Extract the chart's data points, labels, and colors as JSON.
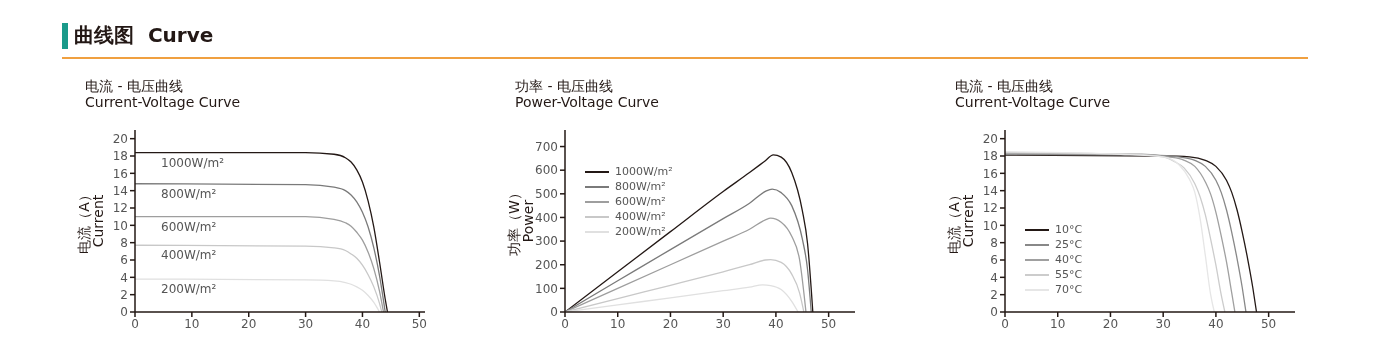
{
  "chart_data": [
    {
      "type": "line",
      "title": "电流 - 电压曲线\nCurrent-Voltage Curve",
      "annotations": [
        "曲线图  Curve"
      ],
      "ylabel": "电流（A）\nCurrent",
      "xlim": [
        0,
        51
      ],
      "ylim": [
        0,
        21
      ],
      "xticks": [
        0,
        10,
        20,
        30,
        40,
        50
      ],
      "yticks": [
        0,
        2,
        4,
        6,
        8,
        10,
        12,
        14,
        16,
        18,
        20
      ],
      "grid": false,
      "legend": false,
      "marker": "none",
      "line_style": "solid",
      "series": [
        {
          "name": "1000W/m²",
          "color": "#231815",
          "x": [
            0,
            30,
            35,
            37,
            38,
            39,
            40,
            41,
            42,
            43,
            44,
            44.4
          ],
          "values": [
            18.4,
            18.4,
            18.2,
            17.8,
            17.3,
            16.4,
            15.0,
            12.8,
            9.8,
            5.8,
            1.5,
            0
          ]
        },
        {
          "name": "800W/m²",
          "color": "#7a7a7a",
          "x": [
            0,
            30,
            35,
            37,
            38,
            39,
            40,
            41,
            42,
            43,
            44
          ],
          "values": [
            14.8,
            14.7,
            14.4,
            14.0,
            13.5,
            12.7,
            11.5,
            9.8,
            7.4,
            4.2,
            0
          ]
        },
        {
          "name": "600W/m²",
          "color": "#9e9e9e",
          "x": [
            0,
            30,
            35,
            37,
            38,
            39,
            40,
            41,
            42,
            43,
            43.7
          ],
          "values": [
            11.0,
            11.0,
            10.7,
            10.3,
            9.9,
            9.2,
            8.3,
            6.9,
            5.0,
            2.4,
            0
          ]
        },
        {
          "name": "400W/m²",
          "color": "#c8c8c8",
          "x": [
            0,
            30,
            35,
            37,
            38,
            39,
            40,
            41,
            42,
            43,
            43.4
          ],
          "values": [
            7.7,
            7.6,
            7.4,
            7.1,
            6.7,
            6.2,
            5.4,
            4.3,
            2.9,
            1.0,
            0
          ]
        },
        {
          "name": "200W/m²",
          "color": "#e0e0e0",
          "x": [
            0,
            30,
            35,
            37,
            38,
            39,
            40,
            41,
            42,
            43
          ],
          "values": [
            3.8,
            3.7,
            3.6,
            3.4,
            3.2,
            2.9,
            2.5,
            1.9,
            1.1,
            0
          ]
        }
      ]
    },
    {
      "type": "line",
      "title": "功率 - 电压曲线\nPower-Voltage Curve",
      "ylabel": "功率（W）\nPower",
      "xlim": [
        0,
        55
      ],
      "ylim": [
        0,
        770
      ],
      "xticks": [
        0,
        10,
        20,
        30,
        40,
        50
      ],
      "yticks": [
        0,
        100,
        200,
        300,
        400,
        500,
        600,
        700
      ],
      "grid": false,
      "legend": "top left",
      "marker": "none",
      "line_style": "solid",
      "series": [
        {
          "name": "1000W/m²",
          "color": "#231815",
          "x": [
            0,
            10,
            20,
            30,
            35,
            38,
            39.5,
            41,
            43,
            45,
            46,
            47
          ],
          "values": [
            0,
            170,
            340,
            510,
            590,
            640,
            665,
            655,
            590,
            430,
            290,
            0
          ]
        },
        {
          "name": "800W/m²",
          "color": "#7a7a7a",
          "x": [
            0,
            10,
            20,
            30,
            35,
            38,
            39.3,
            41,
            43,
            45,
            46,
            46.7
          ],
          "values": [
            0,
            132,
            264,
            395,
            460,
            510,
            520,
            505,
            450,
            310,
            180,
            0
          ]
        },
        {
          "name": "600W/m²",
          "color": "#9e9e9e",
          "x": [
            0,
            10,
            20,
            30,
            35,
            38,
            39,
            41,
            43,
            44.5,
            45.7
          ],
          "values": [
            0,
            100,
            200,
            300,
            350,
            390,
            397,
            380,
            320,
            220,
            0
          ]
        },
        {
          "name": "400W/m²",
          "color": "#c8c8c8",
          "x": [
            0,
            10,
            20,
            30,
            35,
            38,
            39,
            41,
            43,
            44.5,
            45.3
          ],
          "values": [
            0,
            57,
            113,
            170,
            200,
            220,
            222,
            210,
            160,
            80,
            0
          ]
        },
        {
          "name": "200W/m²",
          "color": "#e0e0e0",
          "x": [
            0,
            10,
            20,
            30,
            35,
            37.5,
            39,
            41,
            43,
            44.2
          ],
          "values": [
            0,
            30,
            60,
            90,
            105,
            115,
            112,
            95,
            45,
            0
          ]
        }
      ]
    },
    {
      "type": "line",
      "title": "电流 - 电压曲线\nCurrent-Voltage Curve",
      "ylabel": "电流（A）\nCurrent",
      "xlim": [
        0,
        55
      ],
      "ylim": [
        0,
        21
      ],
      "xticks": [
        0,
        10,
        20,
        30,
        40,
        50
      ],
      "yticks": [
        0,
        2,
        4,
        6,
        8,
        10,
        12,
        14,
        16,
        18,
        20
      ],
      "grid": false,
      "legend": "left",
      "marker": "none",
      "line_style": "solid",
      "series": [
        {
          "name": "10°C",
          "color": "#231815",
          "x": [
            0,
            30,
            35,
            38,
            40,
            42,
            43,
            44,
            45,
            46,
            47,
            47.7
          ],
          "values": [
            18.1,
            18.0,
            17.9,
            17.5,
            16.8,
            15.2,
            13.8,
            11.8,
            9.2,
            6.2,
            2.8,
            0
          ]
        },
        {
          "name": "25°C",
          "color": "#888888",
          "x": [
            0,
            28,
            33,
            36,
            38,
            40,
            41,
            42,
            43,
            44,
            45,
            45.7
          ],
          "values": [
            18.2,
            18.1,
            17.9,
            17.5,
            16.8,
            15.2,
            13.8,
            11.8,
            9.2,
            6.2,
            2.8,
            0
          ]
        },
        {
          "name": "40°C",
          "color": "#a0a0a0",
          "x": [
            0,
            26,
            31,
            34,
            36,
            38,
            39,
            40,
            41,
            42,
            43,
            43.6
          ],
          "values": [
            18.3,
            18.2,
            17.9,
            17.5,
            16.8,
            15.0,
            13.6,
            11.5,
            8.8,
            5.8,
            2.2,
            0
          ]
        },
        {
          "name": "55°C",
          "color": "#cccccc",
          "x": [
            0,
            24,
            30,
            32,
            34,
            36,
            37,
            38,
            39,
            40,
            41,
            41.7
          ],
          "values": [
            18.4,
            18.2,
            17.9,
            17.4,
            16.6,
            14.8,
            13.3,
            11.2,
            8.4,
            5.4,
            2.0,
            0
          ]
        },
        {
          "name": "70°C",
          "color": "#e6e6e6",
          "x": [
            0,
            22,
            30,
            33,
            35,
            36,
            37,
            38,
            39,
            39.7
          ],
          "values": [
            18.5,
            18.2,
            17.9,
            17.0,
            15.3,
            13.8,
            10.8,
            6.5,
            2.0,
            0
          ]
        }
      ]
    }
  ]
}
